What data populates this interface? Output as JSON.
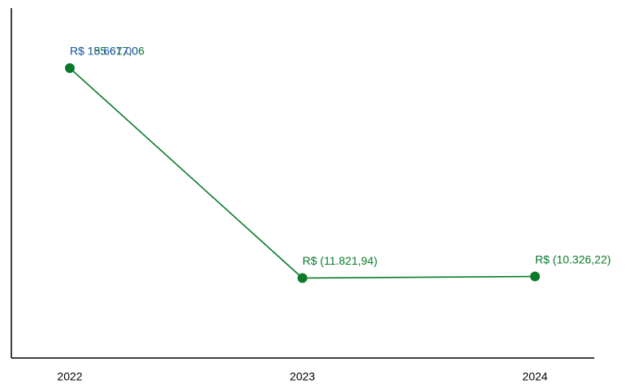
{
  "chart_data": {
    "type": "line",
    "categories": [
      "2022",
      "2023",
      "2024"
    ],
    "series": [
      {
        "color": "#0a7a2a",
        "values": [
          185617.06,
          -11821.94,
          -10326.22
        ],
        "value_labels": [
          "R$ 185.617,06",
          "R$ (11.821,94)",
          "R$ (10.326,22)"
        ]
      }
    ],
    "annotations": [
      {
        "text": "R$ 15.667,00",
        "color": "#2a5db0"
      }
    ],
    "ylim": [
      -87000,
      242000
    ]
  }
}
